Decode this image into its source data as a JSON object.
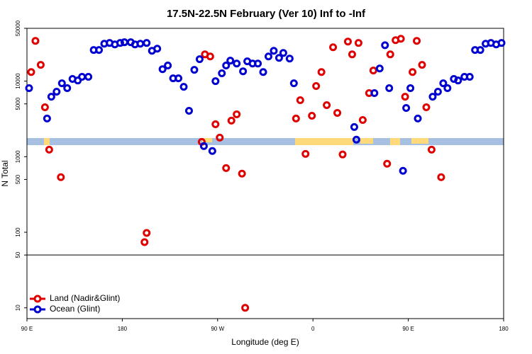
{
  "chart_data": {
    "type": "scatter",
    "log_y": true,
    "title": "17.5N-22.5N February (Ver 10)   Inf to -Inf",
    "xlabel": "Longitude (deg E)",
    "ylabel": "N Total",
    "xlim": [
      90,
      540
    ],
    "ylim": [
      7.2,
      50000
    ],
    "xticks": [
      {
        "value": 90,
        "label": "90 E"
      },
      180,
      {
        "value": 270,
        "label": "90 W"
      },
      {
        "value": 360,
        "label": "0"
      },
      {
        "value": 450,
        "label": "90 E"
      },
      {
        "value": 540,
        "label": "180"
      }
    ],
    "yticks": [
      10,
      50,
      100,
      500,
      1000,
      5000,
      10000,
      50000
    ],
    "hline": 50,
    "legend": "bottom-left",
    "series": [
      {
        "name": "Land (Nadir&Glint)",
        "color": "#e00000",
        "x": [
          94,
          98,
          103,
          107,
          111,
          122,
          201,
          203,
          255,
          258,
          263,
          268,
          272,
          278,
          283,
          288,
          293,
          296,
          344,
          348,
          353,
          359,
          363,
          368,
          373,
          379,
          383,
          388,
          393,
          397,
          403,
          407,
          413,
          417,
          430,
          433,
          438,
          443,
          447,
          454,
          458,
          463,
          467,
          472,
          481
        ],
        "values": [
          13200,
          34100,
          16400,
          4510,
          1240,
          536,
          74,
          98,
          1570,
          22600,
          21200,
          2690,
          1790,
          708,
          3000,
          3640,
          597,
          10,
          3200,
          5600,
          1090,
          3480,
          8610,
          13200,
          4810,
          28100,
          3800,
          1070,
          33400,
          22600,
          32000,
          3060,
          6940,
          13800,
          807,
          22600,
          34800,
          36400,
          6220,
          13200,
          34100,
          16400,
          4510,
          1240,
          536
        ]
      },
      {
        "name": "Ocean (Glint)",
        "color": "#0000d0",
        "x": [
          92,
          109,
          113,
          118,
          123,
          128,
          133,
          138,
          142,
          148,
          153,
          158,
          163,
          168,
          173,
          178,
          182,
          188,
          192,
          197,
          203,
          208,
          213,
          218,
          223,
          228,
          233,
          238,
          243,
          248,
          253,
          257,
          265,
          268,
          274,
          278,
          282,
          288,
          294,
          298,
          303,
          308,
          313,
          318,
          323,
          328,
          332,
          338,
          342,
          399,
          401,
          418,
          423,
          428,
          432,
          445,
          448,
          452,
          459,
          473,
          478,
          483,
          487,
          493,
          497,
          503,
          508,
          513,
          518,
          523,
          528,
          533,
          538
        ],
        "values": [
          8070,
          3200,
          6220,
          7250,
          9370,
          8070,
          10700,
          10200,
          11400,
          11400,
          25800,
          25800,
          31300,
          32000,
          30600,
          32000,
          32700,
          32700,
          30600,
          31300,
          32000,
          25200,
          26900,
          14400,
          16100,
          10900,
          10900,
          8410,
          4050,
          14100,
          19500,
          1380,
          1190,
          10000,
          12700,
          16100,
          18700,
          17100,
          13500,
          18300,
          17100,
          17100,
          13200,
          21200,
          25200,
          20300,
          23600,
          19900,
          9370,
          2470,
          1680,
          6940,
          14700,
          29900,
          8070,
          650,
          4410,
          8070,
          3200,
          6220,
          7250,
          9370,
          8070,
          10700,
          10200,
          11400,
          11400,
          25800,
          25800,
          31300,
          32000,
          30600,
          32000
        ]
      }
    ]
  }
}
